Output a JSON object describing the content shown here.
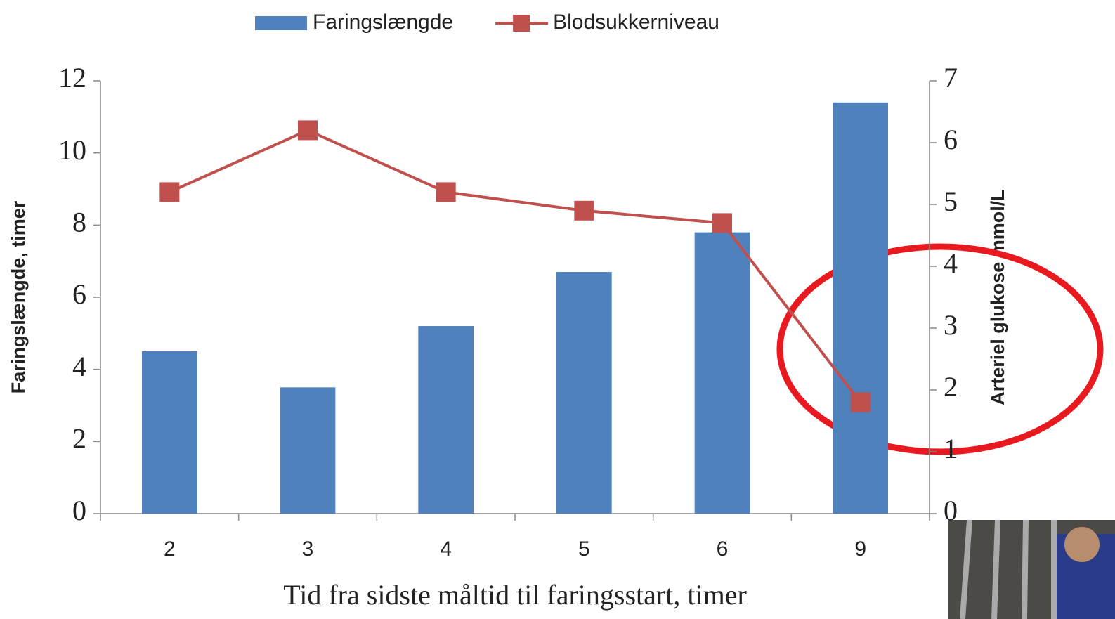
{
  "chart_data": {
    "type": "bar",
    "xlabel": "Tid fra sidste måltid til faringsstart, timer",
    "ylabel": "Faringslængde, timer",
    "y2label": "Arteriel glukose mmol/L",
    "categories": [
      "2",
      "3",
      "4",
      "5",
      "6",
      "9"
    ],
    "series": [
      {
        "name": "Faringslængde",
        "type": "bar",
        "color": "#4f81bd",
        "values": [
          4.5,
          3.5,
          5.2,
          6.7,
          7.8,
          11.4
        ]
      },
      {
        "name": "Blodsukkerniveau",
        "type": "line",
        "axis": "y2",
        "color": "#c0504d",
        "values": [
          5.2,
          6.2,
          5.2,
          4.9,
          4.7,
          1.8
        ]
      }
    ],
    "ylim": [
      0,
      12
    ],
    "yticks": [
      0,
      2,
      4,
      6,
      8,
      10,
      12
    ],
    "y2lim": [
      0,
      7
    ],
    "y2ticks": [
      0,
      1,
      2,
      3,
      4,
      5,
      6,
      7
    ],
    "grid": false,
    "legend": "top"
  }
}
